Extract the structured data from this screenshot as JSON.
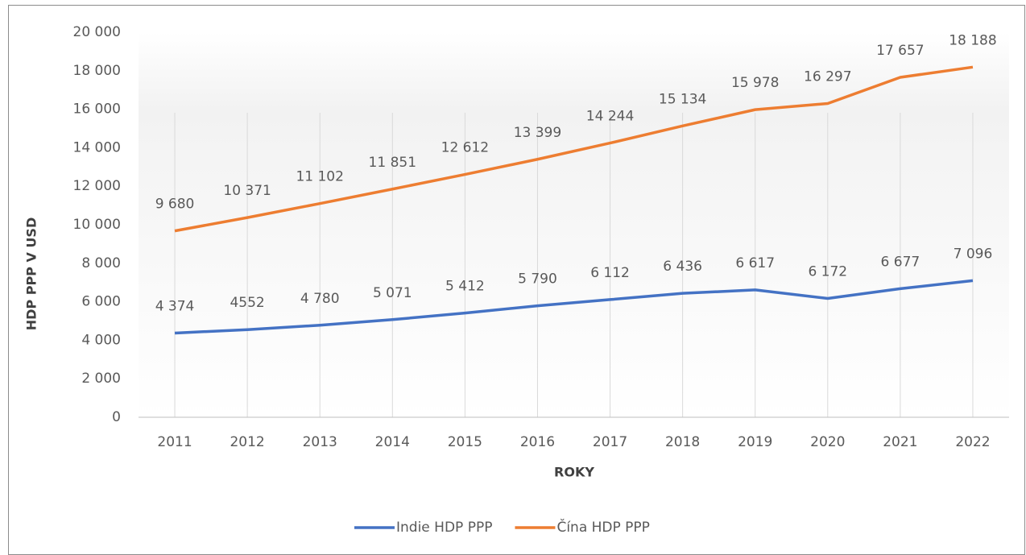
{
  "chart_data": {
    "type": "line",
    "x_label": "ROKY",
    "y_label": "HDP PPP V USD",
    "categories": [
      "2011",
      "2012",
      "2013",
      "2014",
      "2015",
      "2016",
      "2017",
      "2018",
      "2019",
      "2020",
      "2021",
      "2022"
    ],
    "series": [
      {
        "name": "Indie HDP PPP",
        "color": "#4472c4",
        "values": [
          4374,
          4552,
          4780,
          5071,
          5412,
          5790,
          6112,
          6436,
          6617,
          6172,
          6677,
          7096
        ],
        "value_labels": [
          "4 374",
          "4552",
          "4 780",
          "5 071",
          "5 412",
          "5 790",
          "6 112",
          "6 436",
          "6 617",
          "6 172",
          "6 677",
          "7 096"
        ]
      },
      {
        "name": "Čína HDP PPP",
        "color": "#ed7d31",
        "values": [
          9680,
          10371,
          11102,
          11851,
          12612,
          13399,
          14244,
          15134,
          15978,
          16297,
          17657,
          18188
        ],
        "value_labels": [
          "9 680",
          "10 371",
          "11 102",
          "11 851",
          "12 612",
          "13 399",
          "14 244",
          "15 134",
          "15 978",
          "16 297",
          "17 657",
          "18 188"
        ]
      }
    ],
    "ylim": [
      0,
      20000
    ],
    "yticks": [
      0,
      {
        "value": 2000,
        "label": "2 000"
      },
      {
        "value": 4000,
        "label": "4 000"
      },
      {
        "value": 6000,
        "label": "6 000"
      },
      {
        "value": 8000,
        "label": "8 000"
      },
      {
        "value": 10000,
        "label": "10 000"
      },
      {
        "value": 12000,
        "label": "12 000"
      },
      {
        "value": 14000,
        "label": "14 000"
      },
      {
        "value": 16000,
        "label": "16 000"
      },
      {
        "value": 18000,
        "label": "18 000"
      },
      {
        "value": 20000,
        "label": "20 000"
      }
    ],
    "grid": true,
    "legend": "bottom"
  }
}
